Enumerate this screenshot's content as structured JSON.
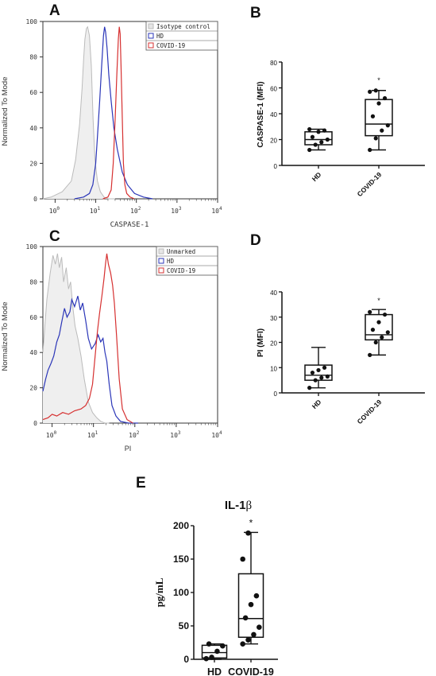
{
  "panels": {
    "A": {
      "label": "A"
    },
    "B": {
      "label": "B"
    },
    "C": {
      "label": "C"
    },
    "D": {
      "label": "D"
    },
    "E": {
      "label": "E"
    }
  },
  "chart_data": [
    {
      "id": "A",
      "type": "line",
      "ylabel": "Normalized To Mode",
      "xlabel": "CASPASE-1",
      "x_scale": "log",
      "xlim": [
        0.5,
        10000
      ],
      "ylim": [
        0,
        100
      ],
      "yticks": [
        "0",
        "20",
        "40",
        "60",
        "80",
        "100"
      ],
      "xticks": [
        {
          "base": "10",
          "exp": "0",
          "value": 1
        },
        {
          "base": "10",
          "exp": "1",
          "value": 10
        },
        {
          "base": "10",
          "exp": "2",
          "value": 100
        },
        {
          "base": "10",
          "exp": "3",
          "value": 1000
        },
        {
          "base": "10",
          "exp": "4",
          "value": 10000
        }
      ],
      "legend_position": "top-right",
      "series": [
        {
          "name": "Isotype control",
          "color": "#bbbbbb",
          "filled": true,
          "x": [
            0.5,
            0.8,
            1.5,
            2.5,
            3.2,
            4.0,
            4.6,
            5.0,
            5.4,
            5.9,
            6.3,
            7.0,
            7.8,
            8.6,
            9.6,
            11,
            13,
            16,
            20,
            30
          ],
          "y": [
            0,
            1,
            4,
            10,
            22,
            42,
            62,
            78,
            90,
            96,
            97,
            92,
            75,
            45,
            22,
            10,
            4,
            1,
            0,
            0
          ]
        },
        {
          "name": "HD",
          "color": "#2a35b8",
          "filled": false,
          "x": [
            3,
            5,
            7,
            8.5,
            10,
            11,
            12.5,
            14,
            15.5,
            16.5,
            17.5,
            19,
            21,
            24,
            28,
            34,
            45,
            60,
            90,
            150,
            250
          ],
          "y": [
            0,
            1,
            3,
            8,
            20,
            35,
            55,
            75,
            92,
            97,
            94,
            85,
            70,
            55,
            40,
            28,
            15,
            8,
            3,
            1,
            0
          ]
        },
        {
          "name": "COVID-19",
          "color": "#d63030",
          "filled": false,
          "x": [
            15,
            20,
            24,
            27,
            30,
            33,
            36,
            38,
            40,
            42,
            45,
            48,
            52,
            58,
            70,
            90
          ],
          "y": [
            0,
            1,
            5,
            20,
            45,
            70,
            90,
            97,
            93,
            75,
            45,
            20,
            8,
            3,
            1,
            0
          ]
        }
      ]
    },
    {
      "id": "B",
      "type": "box",
      "ylabel": "CASPASE-1 (MFI)",
      "ylim": [
        0,
        80
      ],
      "yticks": [
        "0",
        "20",
        "40",
        "60",
        "80"
      ],
      "categories": [
        "HD",
        "COVID-19"
      ],
      "boxes": [
        {
          "name": "HD",
          "min": 12,
          "q1": 16,
          "median": 20,
          "q3": 26,
          "max": 28,
          "points": [
            12,
            16,
            18,
            20,
            22,
            26,
            27,
            28
          ]
        },
        {
          "name": "COVID-19",
          "min": 12,
          "q1": 23,
          "median": 32,
          "q3": 51,
          "max": 58,
          "points": [
            12,
            21,
            27,
            31,
            38,
            48,
            52,
            57,
            58
          ]
        }
      ],
      "annotations": [
        {
          "category": "COVID-19",
          "text": "*"
        }
      ]
    },
    {
      "id": "C",
      "type": "line",
      "ylabel": "Normalized To Mode",
      "xlabel": "PI",
      "x_scale": "log",
      "xlim": [
        0.6,
        10000
      ],
      "ylim": [
        0,
        100
      ],
      "yticks": [
        "0",
        "20",
        "40",
        "60",
        "80",
        "100"
      ],
      "xticks": [
        {
          "base": "10",
          "exp": "0",
          "value": 1
        },
        {
          "base": "10",
          "exp": "1",
          "value": 10
        },
        {
          "base": "10",
          "exp": "2",
          "value": 100
        },
        {
          "base": "10",
          "exp": "3",
          "value": 1000
        },
        {
          "base": "10",
          "exp": "4",
          "value": 10000
        }
      ],
      "legend_position": "top-right",
      "series": [
        {
          "name": "Unmarked",
          "color": "#bbbbbb",
          "filled": true,
          "x": [
            0.6,
            0.75,
            0.9,
            1.05,
            1.2,
            1.35,
            1.5,
            1.7,
            1.9,
            2.2,
            2.5,
            2.8,
            3.2,
            3.6,
            4.2,
            5.0,
            6.0,
            7.5,
            9.5,
            12,
            15,
            19,
            24
          ],
          "y": [
            40,
            70,
            85,
            95,
            90,
            96,
            88,
            94,
            80,
            88,
            76,
            80,
            65,
            55,
            48,
            38,
            25,
            12,
            6,
            3,
            1,
            0,
            0
          ]
        },
        {
          "name": "HD",
          "color": "#2a35b8",
          "filled": false,
          "x": [
            0.6,
            0.7,
            0.8,
            0.95,
            1.1,
            1.3,
            1.5,
            1.7,
            2.0,
            2.3,
            2.7,
            3.0,
            3.5,
            4.2,
            4.8,
            5.5,
            6.5,
            7.5,
            9.0,
            11,
            13,
            15,
            17,
            19,
            21,
            24,
            28,
            35,
            45,
            70,
            120
          ],
          "y": [
            18,
            25,
            30,
            34,
            38,
            46,
            50,
            57,
            65,
            60,
            63,
            70,
            66,
            72,
            64,
            68,
            58,
            48,
            42,
            45,
            50,
            46,
            48,
            40,
            35,
            22,
            10,
            4,
            1,
            0,
            0
          ]
        },
        {
          "name": "COVID-19",
          "color": "#d63030",
          "filled": false,
          "x": [
            0.6,
            0.8,
            1.0,
            1.3,
            1.8,
            2.5,
            3.5,
            5.0,
            6.5,
            8.0,
            9.5,
            11,
            12.5,
            14,
            16,
            18,
            19.5,
            21,
            23,
            26,
            29,
            32,
            36,
            42,
            50,
            65,
            90
          ],
          "y": [
            2,
            3,
            5,
            4,
            6,
            5,
            7,
            8,
            10,
            14,
            22,
            38,
            52,
            62,
            72,
            82,
            90,
            96,
            90,
            85,
            78,
            68,
            50,
            25,
            8,
            2,
            0
          ]
        }
      ]
    },
    {
      "id": "D",
      "type": "box",
      "ylabel": "PI (MFI)",
      "ylim": [
        0,
        40
      ],
      "yticks": [
        "0",
        "10",
        "20",
        "30",
        "40"
      ],
      "categories": [
        "HD",
        "COVID-19"
      ],
      "boxes": [
        {
          "name": "HD",
          "min": 2,
          "q1": 5,
          "median": 7,
          "q3": 11,
          "max": 18,
          "points": [
            2,
            5,
            6,
            6.5,
            8,
            9,
            10
          ]
        },
        {
          "name": "COVID-19",
          "min": 15,
          "q1": 21,
          "median": 23,
          "q3": 31,
          "max": 33,
          "points": [
            15,
            20,
            22,
            24,
            25,
            28,
            31,
            32
          ]
        }
      ],
      "annotations": [
        {
          "category": "COVID-19",
          "text": "*"
        }
      ]
    },
    {
      "id": "E",
      "type": "box",
      "title_main": "IL-1",
      "title_greek": "β",
      "ylabel": "pg/mL",
      "ylim": [
        0,
        200
      ],
      "yticks": [
        "0",
        "50",
        "100",
        "150",
        "200"
      ],
      "categories": [
        "HD",
        "COVID-19"
      ],
      "boxes": [
        {
          "name": "HD",
          "min": 0,
          "q1": 2,
          "median": 10,
          "q3": 21,
          "max": 23,
          "points": [
            1,
            3,
            12,
            20,
            23
          ]
        },
        {
          "name": "COVID-19",
          "min": 23,
          "q1": 33,
          "median": 61,
          "q3": 128,
          "max": 190,
          "points": [
            23,
            29,
            37,
            48,
            62,
            82,
            95,
            150,
            189
          ]
        }
      ],
      "annotations": [
        {
          "category": "COVID-19",
          "text": "*"
        }
      ]
    }
  ]
}
